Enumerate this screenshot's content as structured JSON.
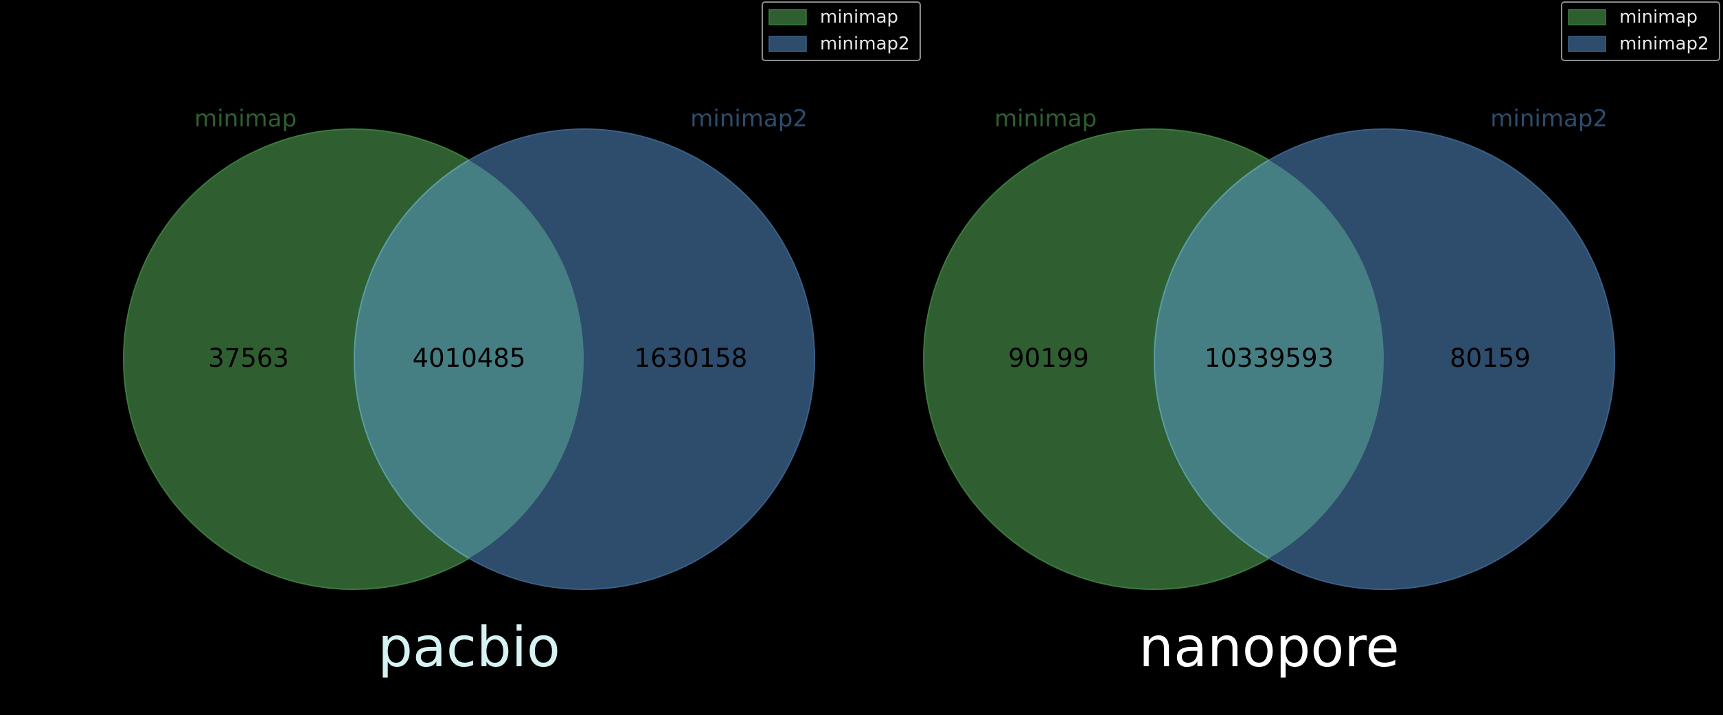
{
  "colors": {
    "background": "#000000",
    "set_a": "#2f5f31",
    "set_b": "#2e4c6b",
    "overlap": "#467f83",
    "set_a_label": "#2f5f31",
    "set_b_label": "#2e4c6b",
    "count_text": "#000000",
    "legend_text": "#e6e6e6",
    "legend_border": "#8c8c8c",
    "title_pacbio": "#d6f3f3",
    "title_nanopore": "#ffffff"
  },
  "chart_data": [
    {
      "type": "venn",
      "title": "pacbio",
      "sets": [
        "minimap",
        "minimap2"
      ],
      "legend": {
        "entries": [
          "minimap",
          "minimap2"
        ],
        "placement": "top-right"
      },
      "counts": {
        "only_a": "37563",
        "both": "4010485",
        "only_b": "1630158"
      }
    },
    {
      "type": "venn",
      "title": "nanopore",
      "sets": [
        "minimap",
        "minimap2"
      ],
      "legend": {
        "entries": [
          "minimap",
          "minimap2"
        ],
        "placement": "top-right"
      },
      "counts": {
        "only_a": "90199",
        "both": "10339593",
        "only_b": "80159"
      }
    }
  ]
}
